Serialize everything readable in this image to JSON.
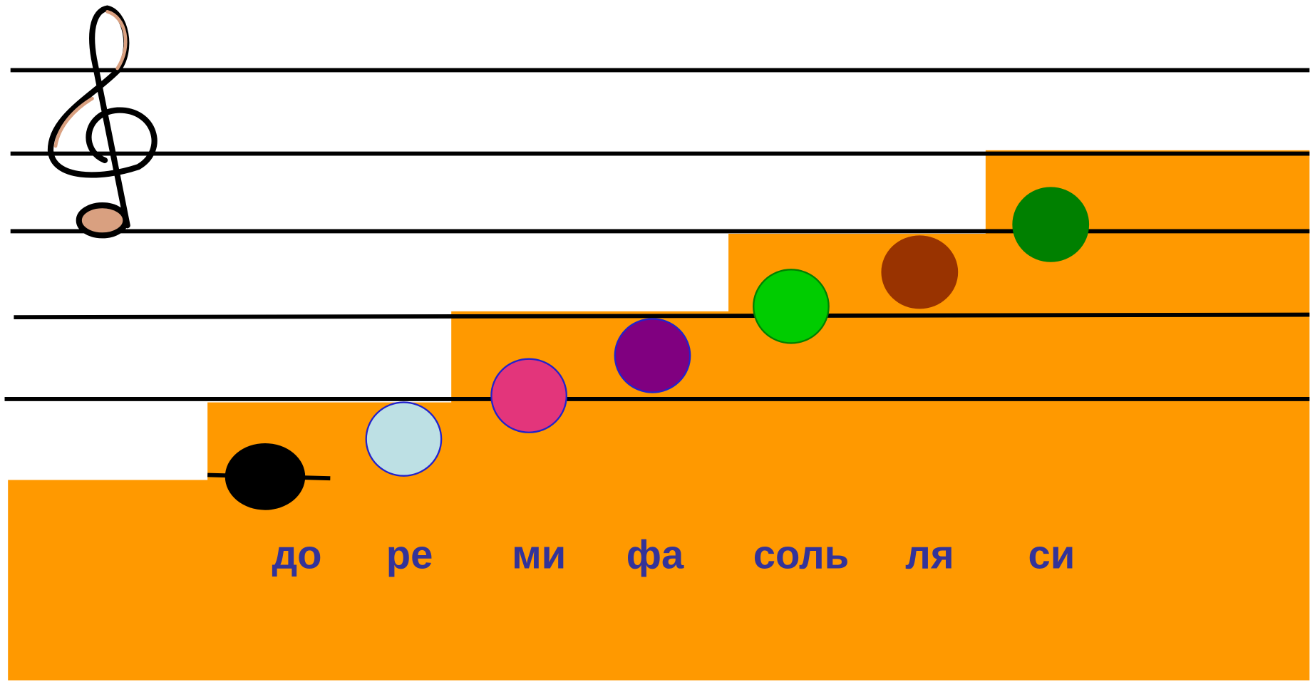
{
  "notes": [
    {
      "label": "до"
    },
    {
      "label": "ре"
    },
    {
      "label": "ми"
    },
    {
      "label": "фа"
    },
    {
      "label": "соль"
    },
    {
      "label": "ля"
    },
    {
      "label": "си"
    }
  ]
}
